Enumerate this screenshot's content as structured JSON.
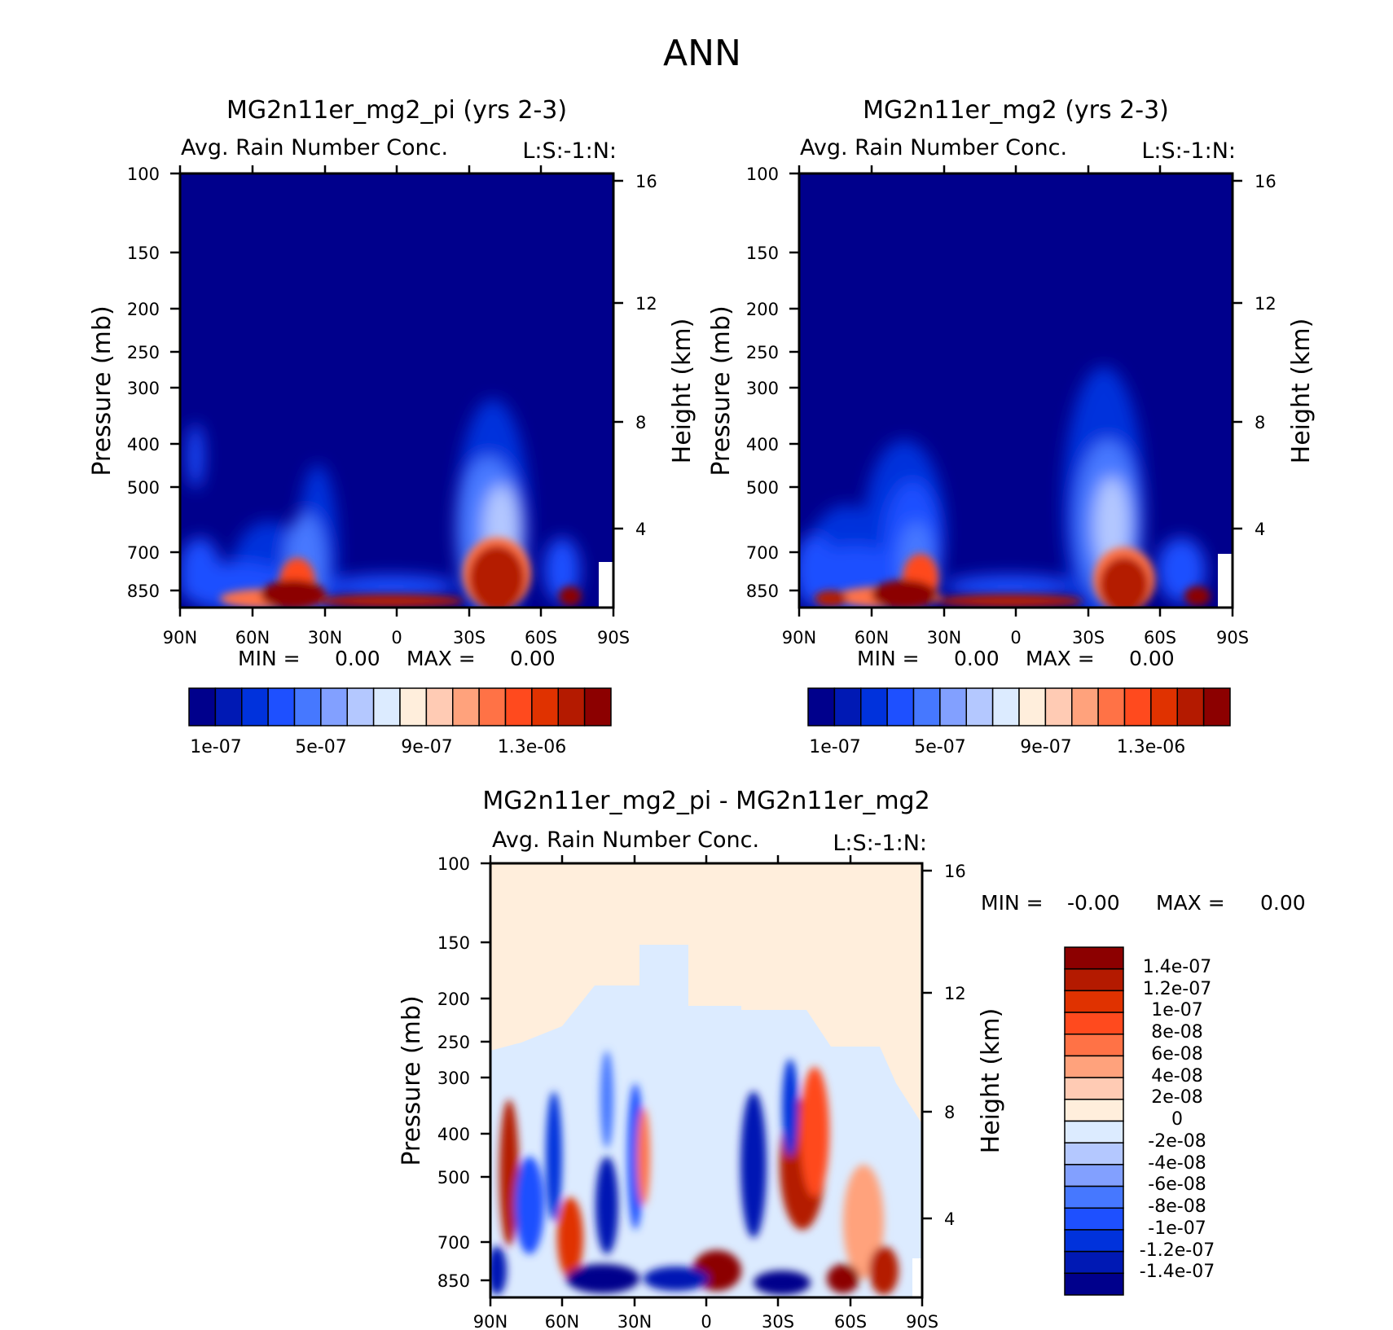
{
  "figure": {
    "title": "ANN"
  },
  "chart_data": [
    {
      "type": "heatmap",
      "id": "panel-left",
      "title": "MG2n11er_mg2_pi (yrs 2-3)",
      "subtitle": "Avg. Rain Number Conc.",
      "units": "L:S:-1:N:",
      "ylabel": "Pressure (mb)",
      "ylabel_right": "Height (km)",
      "x_ticks": [
        "90N",
        "60N",
        "30N",
        "0",
        "30S",
        "60S",
        "90S"
      ],
      "y_ticks": [
        "100",
        "150",
        "200",
        "250",
        "300",
        "400",
        "500",
        "700",
        "850"
      ],
      "y_ticks_right": [
        "16",
        "12",
        "8",
        "4"
      ],
      "min_label": "MIN =",
      "min_value": "0.00",
      "max_label": "MAX =",
      "max_value": "0.00",
      "colorbar_labels": [
        "1e-07",
        "5e-07",
        "9e-07",
        "1.3e-06"
      ],
      "levels": [
        1e-07,
        2e-07,
        3e-07,
        4e-07,
        5e-07,
        6e-07,
        7e-07,
        8e-07,
        9e-07,
        1e-06,
        1.1e-06,
        1.2e-06,
        1.3e-06,
        1.4e-06,
        1.5e-06
      ],
      "colors": [
        "#00008c",
        "#0019b4",
        "#0032dc",
        "#1e50ff",
        "#4678ff",
        "#82a0ff",
        "#b4c8ff",
        "#dcebff",
        "#ffeedc",
        "#ffcbb4",
        "#ffa27c",
        "#ff7246",
        "#ff4a1e",
        "#e03200",
        "#b41a00",
        "#8c0000"
      ]
    },
    {
      "type": "heatmap",
      "id": "panel-right",
      "title": "MG2n11er_mg2 (yrs 2-3)",
      "subtitle": "Avg. Rain Number Conc.",
      "units": "L:S:-1:N:",
      "ylabel": "Pressure (mb)",
      "ylabel_right": "Height (km)",
      "x_ticks": [
        "90N",
        "60N",
        "30N",
        "0",
        "30S",
        "60S",
        "90S"
      ],
      "y_ticks": [
        "100",
        "150",
        "200",
        "250",
        "300",
        "400",
        "500",
        "700",
        "850"
      ],
      "y_ticks_right": [
        "16",
        "12",
        "8",
        "4"
      ],
      "min_label": "MIN =",
      "min_value": "0.00",
      "max_label": "MAX =",
      "max_value": "0.00",
      "colorbar_labels": [
        "1e-07",
        "5e-07",
        "9e-07",
        "1.3e-06"
      ]
    },
    {
      "type": "heatmap",
      "id": "panel-diff",
      "title": "MG2n11er_mg2_pi - MG2n11er_mg2",
      "subtitle": "Avg. Rain Number Conc.",
      "units": "L:S:-1:N:",
      "ylabel": "Pressure (mb)",
      "ylabel_right": "Height (km)",
      "x_ticks": [
        "90N",
        "60N",
        "30N",
        "0",
        "30S",
        "60S",
        "90S"
      ],
      "y_ticks": [
        "100",
        "150",
        "200",
        "250",
        "300",
        "400",
        "500",
        "700",
        "850"
      ],
      "y_ticks_right": [
        "16",
        "12",
        "8",
        "4"
      ],
      "min_label": "MIN =",
      "min_value": "-0.00",
      "max_label": "MAX =",
      "max_value": "0.00",
      "colorbar_labels": [
        "1.4e-07",
        "1.2e-07",
        "1e-07",
        "8e-08",
        "6e-08",
        "4e-08",
        "2e-08",
        "0",
        "-2e-08",
        "-4e-08",
        "-6e-08",
        "-8e-08",
        "-1e-07",
        "-1.2e-07",
        "-1.4e-07"
      ],
      "colors": [
        "#8c0000",
        "#b41a00",
        "#e03200",
        "#ff4a1e",
        "#ff7246",
        "#ffa27c",
        "#ffcbb4",
        "#ffeedc",
        "#dcebff",
        "#b4c8ff",
        "#82a0ff",
        "#4678ff",
        "#1e50ff",
        "#0032dc",
        "#0019b4",
        "#00008c"
      ]
    }
  ]
}
